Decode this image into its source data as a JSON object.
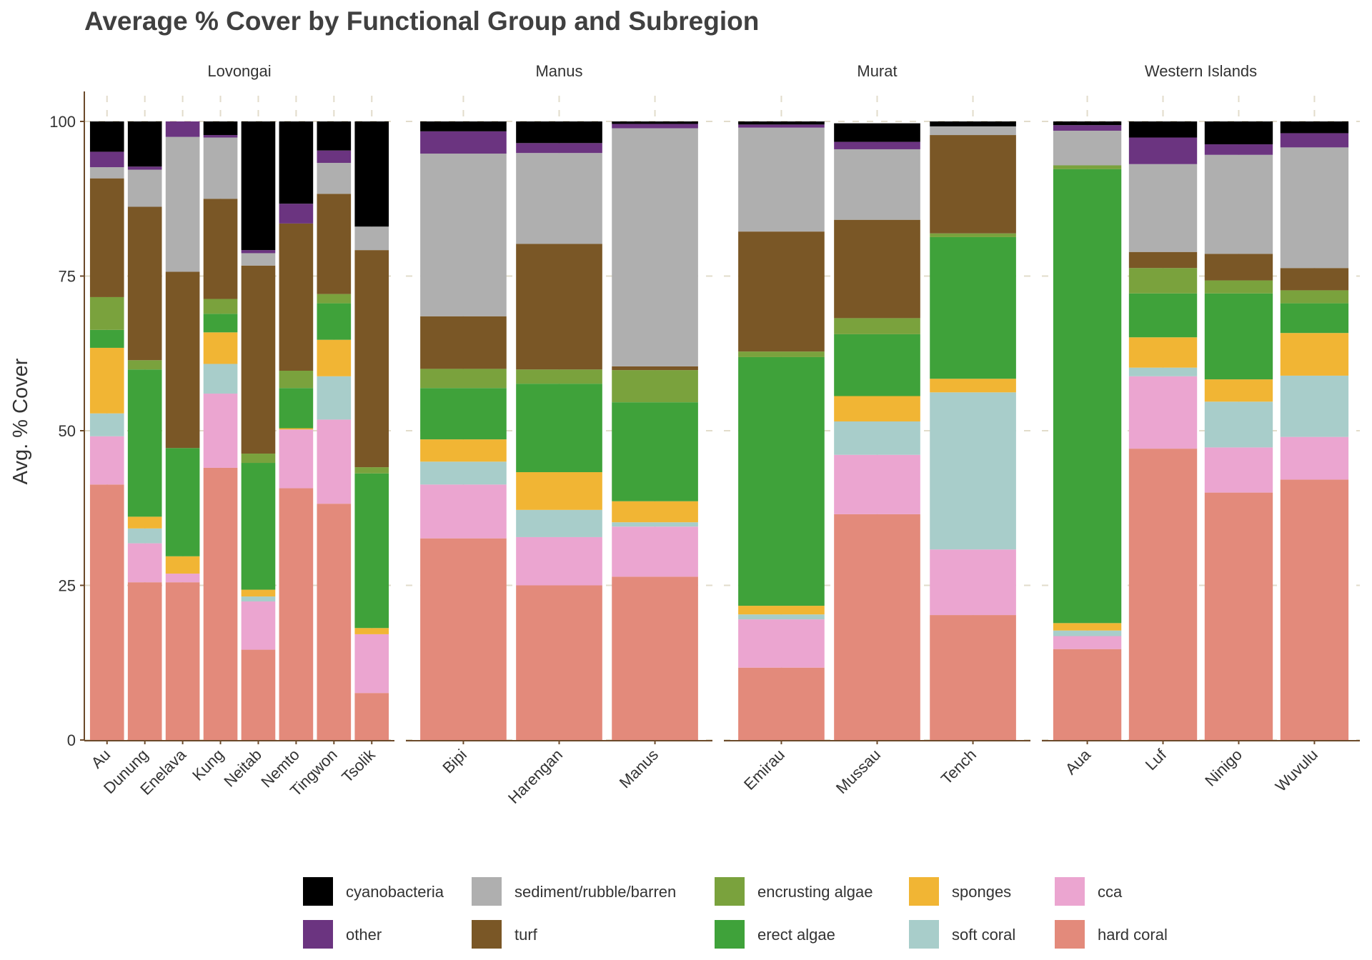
{
  "chart_data": {
    "type": "bar",
    "stacked": true,
    "title": "Average % Cover by Functional Group and Subregion",
    "ylabel": "Avg. % Cover",
    "xlabel": "",
    "ylim": [
      0,
      100
    ],
    "yticks": [
      0,
      25,
      50,
      75,
      100
    ],
    "grid": true,
    "legend_position": "bottom",
    "groups": [
      "hard coral",
      "cca",
      "soft coral",
      "sponges",
      "erect algae",
      "encrusting algae",
      "turf",
      "sediment/rubble/barren",
      "other",
      "cyanobacteria"
    ],
    "colors": {
      "cyanobacteria": "#000000",
      "other": "#6b3480",
      "sediment/rubble/barren": "#afafaf",
      "turf": "#7a5726",
      "encrusting algae": "#7aa23d",
      "erect algae": "#3fa23a",
      "sponges": "#f1b534",
      "soft coral": "#a8cdca",
      "cca": "#eba5d0",
      "hard coral": "#e38a7b"
    },
    "legend": [
      [
        "cyanobacteria",
        "other"
      ],
      [
        "sediment/rubble/barren",
        "turf"
      ],
      [
        "encrusting algae",
        "erect algae"
      ],
      [
        "sponges",
        "soft coral"
      ],
      [
        "cca",
        "hard coral"
      ]
    ],
    "facets": [
      {
        "name": "Lovongai",
        "sites": [
          {
            "name": "Au",
            "values": [
              41.3,
              7.8,
              3.7,
              10.6,
              2.9,
              5.3,
              19.2,
              1.8,
              2.5,
              4.9
            ]
          },
          {
            "name": "Dunung",
            "values": [
              25.5,
              6.3,
              2.4,
              1.9,
              23.8,
              1.5,
              24.8,
              6.0,
              0.5,
              7.3
            ]
          },
          {
            "name": "Enelava",
            "values": [
              25.5,
              1.4,
              0.0,
              2.8,
              17.5,
              0.0,
              28.5,
              21.8,
              2.5,
              0.0
            ]
          },
          {
            "name": "Kung",
            "values": [
              44.0,
              12.0,
              4.8,
              5.1,
              3.0,
              2.4,
              16.2,
              9.9,
              0.4,
              2.2
            ]
          },
          {
            "name": "Neitab",
            "values": [
              14.6,
              7.8,
              0.8,
              1.1,
              20.5,
              1.5,
              30.4,
              2.0,
              0.5,
              20.8
            ]
          },
          {
            "name": "Nemto",
            "values": [
              40.7,
              9.5,
              0.0,
              0.2,
              6.5,
              2.8,
              23.8,
              0.0,
              3.2,
              13.3
            ]
          },
          {
            "name": "Tingwon",
            "values": [
              38.2,
              13.6,
              7.0,
              5.9,
              5.9,
              1.5,
              16.2,
              5.0,
              2.0,
              4.7
            ]
          },
          {
            "name": "Tsolik",
            "values": [
              7.6,
              9.5,
              0.0,
              1.0,
              25.0,
              1.0,
              35.1,
              3.8,
              0.0,
              17.0
            ]
          }
        ]
      },
      {
        "name": "Manus",
        "sites": [
          {
            "name": "Bipi",
            "values": [
              32.6,
              8.7,
              3.7,
              3.6,
              8.3,
              3.1,
              8.5,
              26.3,
              3.6,
              1.6
            ]
          },
          {
            "name": "Harengan",
            "values": [
              25.0,
              7.8,
              4.4,
              6.1,
              14.3,
              2.3,
              20.3,
              14.7,
              1.6,
              3.5
            ]
          },
          {
            "name": "Manus",
            "values": [
              26.4,
              8.1,
              0.7,
              3.4,
              16.0,
              5.2,
              0.6,
              38.5,
              0.7,
              0.4
            ]
          }
        ]
      },
      {
        "name": "Murat",
        "sites": [
          {
            "name": "Emirau",
            "values": [
              11.7,
              7.8,
              0.8,
              1.4,
              40.2,
              0.9,
              19.4,
              16.8,
              0.5,
              0.5
            ]
          },
          {
            "name": "Mussau",
            "values": [
              36.5,
              9.6,
              5.4,
              4.1,
              10.0,
              2.6,
              15.9,
              11.4,
              1.2,
              3.0
            ]
          },
          {
            "name": "Tench",
            "values": [
              20.2,
              10.6,
              25.4,
              2.2,
              22.9,
              0.6,
              15.9,
              1.4,
              0.0,
              0.8
            ]
          }
        ]
      },
      {
        "name": "Western Islands",
        "sites": [
          {
            "name": "Aua",
            "values": [
              14.7,
              2.1,
              0.9,
              1.2,
              73.4,
              0.6,
              0.0,
              5.6,
              0.9,
              0.6
            ]
          },
          {
            "name": "Luf",
            "values": [
              47.1,
              11.7,
              1.4,
              4.9,
              7.1,
              4.1,
              2.6,
              14.2,
              4.3,
              2.6
            ]
          },
          {
            "name": "Ninigo",
            "values": [
              40.0,
              7.3,
              7.4,
              3.6,
              13.9,
              2.1,
              4.3,
              16.0,
              1.7,
              3.7
            ]
          },
          {
            "name": "Wuvulu",
            "values": [
              42.1,
              6.9,
              9.9,
              6.9,
              4.8,
              2.1,
              3.6,
              19.5,
              2.3,
              1.9
            ]
          }
        ]
      }
    ]
  }
}
